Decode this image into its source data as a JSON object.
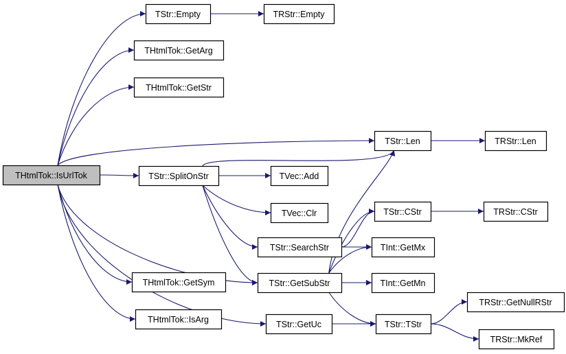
{
  "colors": {
    "edge": "#191970",
    "root_fill": "#bfbfbf",
    "node_fill": "#ffffff"
  },
  "nodes": [
    {
      "id": "isurltok",
      "label": "THtmlTok::IsUrlTok",
      "root": true
    },
    {
      "id": "empty",
      "label": "TStr::Empty"
    },
    {
      "id": "rempty",
      "label": "TRStr::Empty"
    },
    {
      "id": "getarg",
      "label": "THtmlTok::GetArg"
    },
    {
      "id": "getstr",
      "label": "THtmlTok::GetStr"
    },
    {
      "id": "len",
      "label": "TStr::Len"
    },
    {
      "id": "rlen",
      "label": "TRStr::Len"
    },
    {
      "id": "split",
      "label": "TStr::SplitOnStr"
    },
    {
      "id": "add",
      "label": "TVec::Add"
    },
    {
      "id": "clr",
      "label": "TVec::Clr"
    },
    {
      "id": "cstr",
      "label": "TStr::CStr"
    },
    {
      "id": "rcstr",
      "label": "TRStr::CStr"
    },
    {
      "id": "search",
      "label": "TStr::SearchStr"
    },
    {
      "id": "getmx",
      "label": "TInt::GetMx"
    },
    {
      "id": "getsym",
      "label": "THtmlTok::GetSym"
    },
    {
      "id": "substr",
      "label": "TStr::GetSubStr"
    },
    {
      "id": "getmn",
      "label": "TInt::GetMn"
    },
    {
      "id": "nullr",
      "label": "TRStr::GetNullRStr"
    },
    {
      "id": "isarg",
      "label": "THtmlTok::IsArg"
    },
    {
      "id": "getuc",
      "label": "TStr::GetUc"
    },
    {
      "id": "tstr",
      "label": "TStr::TStr"
    },
    {
      "id": "mkref",
      "label": "TRStr::MkRef"
    }
  ],
  "edges": [
    [
      "isurltok",
      "empty"
    ],
    [
      "isurltok",
      "getarg"
    ],
    [
      "isurltok",
      "getstr"
    ],
    [
      "isurltok",
      "len"
    ],
    [
      "isurltok",
      "split"
    ],
    [
      "isurltok",
      "substr"
    ],
    [
      "isurltok",
      "getsym"
    ],
    [
      "isurltok",
      "isarg"
    ],
    [
      "isurltok",
      "getuc"
    ],
    [
      "empty",
      "rempty"
    ],
    [
      "len",
      "rlen"
    ],
    [
      "split",
      "len"
    ],
    [
      "split",
      "add"
    ],
    [
      "split",
      "clr"
    ],
    [
      "split",
      "search"
    ],
    [
      "split",
      "substr"
    ],
    [
      "cstr",
      "rcstr"
    ],
    [
      "search",
      "cstr"
    ],
    [
      "search",
      "getmx"
    ],
    [
      "substr",
      "len"
    ],
    [
      "substr",
      "cstr"
    ],
    [
      "substr",
      "getmx"
    ],
    [
      "substr",
      "getmn"
    ],
    [
      "substr",
      "tstr"
    ],
    [
      "getuc",
      "tstr"
    ],
    [
      "tstr",
      "nullr"
    ],
    [
      "tstr",
      "mkref"
    ]
  ]
}
